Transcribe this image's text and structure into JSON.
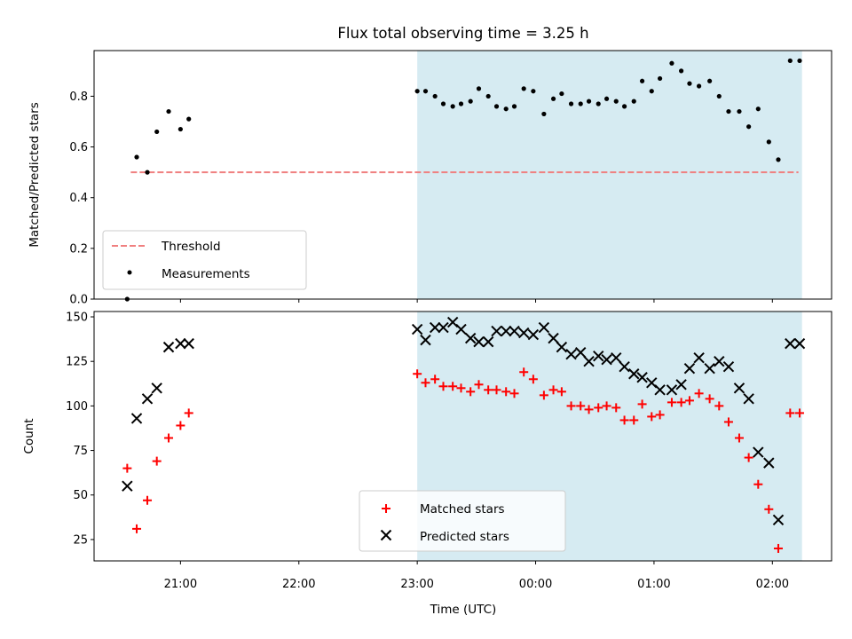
{
  "title": "Flux total observing time = 3.25 h",
  "colors": {
    "shade": "#add8e6",
    "threshold": "#f08080",
    "measurements": "#000000",
    "matched": "#ff0000",
    "predicted": "#000000"
  },
  "chart_data": [
    {
      "type": "scatter",
      "ylabel": "Matched/Predicted stars",
      "ylim": [
        0,
        0.98
      ],
      "yticks": [
        0.0,
        0.2,
        0.4,
        0.6,
        0.8
      ],
      "ytick_labels": [
        "0.0",
        "0.2",
        "0.4",
        "0.6",
        "0.8"
      ],
      "x_unit": "hours since 00:00 UTC",
      "xlim": [
        -3.73,
        2.5
      ],
      "shaded_x_range": [
        -1.0,
        2.25
      ],
      "threshold": {
        "name": "Threshold",
        "value": 0.5,
        "x_range": [
          -3.42,
          2.22
        ]
      },
      "legend_position": "lower left",
      "series": [
        {
          "name": "Measurements",
          "marker": "dot",
          "x": [
            -3.45,
            -3.37,
            -3.28,
            -3.2,
            -3.1,
            -3.0,
            -2.93,
            -1.0,
            -0.93,
            -0.85,
            -0.78,
            -0.7,
            -0.63,
            -0.55,
            -0.48,
            -0.4,
            -0.33,
            -0.25,
            -0.18,
            -0.1,
            -0.02,
            0.07,
            0.15,
            0.22,
            0.3,
            0.38,
            0.45,
            0.53,
            0.6,
            0.68,
            0.75,
            0.83,
            0.9,
            0.98,
            1.05,
            1.15,
            1.23,
            1.3,
            1.38,
            1.47,
            1.55,
            1.63,
            1.72,
            1.8,
            1.88,
            1.97,
            2.05,
            2.15,
            2.23
          ],
          "y": [
            0.0,
            0.56,
            0.5,
            0.66,
            0.74,
            0.67,
            0.71,
            0.82,
            0.82,
            0.8,
            0.77,
            0.76,
            0.77,
            0.78,
            0.83,
            0.8,
            0.76,
            0.75,
            0.76,
            0.83,
            0.82,
            0.73,
            0.79,
            0.81,
            0.77,
            0.77,
            0.78,
            0.77,
            0.79,
            0.78,
            0.76,
            0.78,
            0.86,
            0.82,
            0.87,
            0.93,
            0.9,
            0.85,
            0.84,
            0.86,
            0.8,
            0.74,
            0.74,
            0.68,
            0.75,
            0.62,
            0.55,
            0.94,
            0.94
          ]
        }
      ]
    },
    {
      "type": "scatter",
      "xlabel": "Time (UTC)",
      "ylabel": "Count",
      "ylim": [
        13,
        153
      ],
      "yticks": [
        25,
        50,
        75,
        100,
        125,
        150
      ],
      "ytick_labels": [
        "25",
        "50",
        "75",
        "100",
        "125",
        "150"
      ],
      "x_unit": "hours since 00:00 UTC",
      "xlim": [
        -3.73,
        2.5
      ],
      "xticks": [
        -3,
        -2,
        -1,
        0,
        1,
        2
      ],
      "xtick_labels": [
        "21:00",
        "22:00",
        "23:00",
        "00:00",
        "01:00",
        "02:00"
      ],
      "shaded_x_range": [
        -1.0,
        2.25
      ],
      "legend_position": "lower center",
      "series": [
        {
          "name": "Matched stars",
          "marker": "plus",
          "x": [
            -3.45,
            -3.37,
            -3.28,
            -3.2,
            -3.1,
            -3.0,
            -2.93,
            -1.0,
            -0.93,
            -0.85,
            -0.78,
            -0.7,
            -0.63,
            -0.55,
            -0.48,
            -0.4,
            -0.33,
            -0.25,
            -0.18,
            -0.1,
            -0.02,
            0.07,
            0.15,
            0.22,
            0.3,
            0.38,
            0.45,
            0.53,
            0.6,
            0.68,
            0.75,
            0.83,
            0.9,
            0.98,
            1.05,
            1.15,
            1.23,
            1.3,
            1.38,
            1.47,
            1.55,
            1.63,
            1.72,
            1.8,
            1.88,
            1.97,
            2.05,
            2.15,
            2.23
          ],
          "y": [
            65,
            31,
            47,
            69,
            82,
            89,
            96,
            118,
            113,
            115,
            111,
            111,
            110,
            108,
            112,
            109,
            109,
            108,
            107,
            119,
            115,
            106,
            109,
            108,
            100,
            100,
            98,
            99,
            100,
            99,
            92,
            92,
            101,
            94,
            95,
            102,
            102,
            103,
            107,
            104,
            100,
            91,
            82,
            71,
            56,
            42,
            20,
            96,
            96
          ]
        },
        {
          "name": "Predicted stars",
          "marker": "x",
          "x": [
            -3.45,
            -3.37,
            -3.28,
            -3.2,
            -3.1,
            -3.0,
            -2.93,
            -1.0,
            -0.93,
            -0.85,
            -0.78,
            -0.7,
            -0.63,
            -0.55,
            -0.48,
            -0.4,
            -0.33,
            -0.25,
            -0.18,
            -0.1,
            -0.02,
            0.07,
            0.15,
            0.22,
            0.3,
            0.38,
            0.45,
            0.53,
            0.6,
            0.68,
            0.75,
            0.83,
            0.9,
            0.98,
            1.05,
            1.15,
            1.23,
            1.3,
            1.38,
            1.47,
            1.55,
            1.63,
            1.72,
            1.8,
            1.88,
            1.97,
            2.05,
            2.15,
            2.23
          ],
          "y": [
            55,
            93,
            104,
            110,
            133,
            135,
            135,
            143,
            137,
            144,
            144,
            147,
            143,
            138,
            136,
            136,
            142,
            142,
            142,
            141,
            140,
            144,
            138,
            133,
            129,
            130,
            125,
            128,
            126,
            127,
            122,
            118,
            116,
            113,
            109,
            109,
            112,
            121,
            127,
            121,
            125,
            122,
            110,
            104,
            74,
            68,
            36,
            135,
            135
          ]
        }
      ]
    }
  ]
}
